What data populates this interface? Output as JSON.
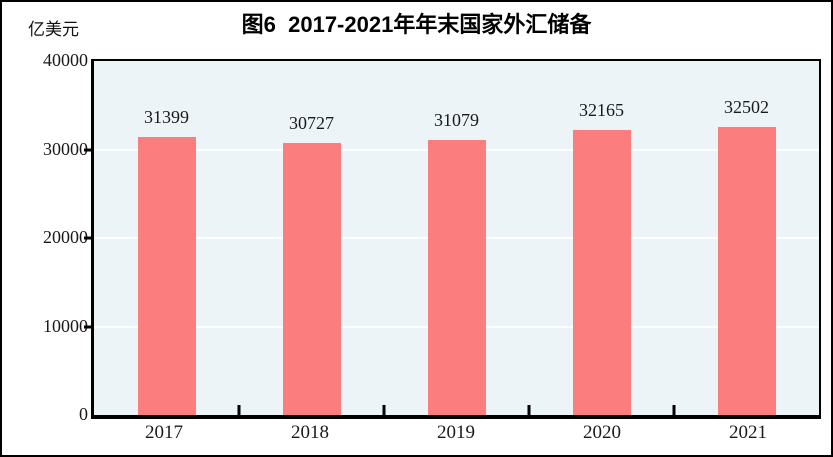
{
  "chart_data": {
    "type": "bar",
    "title": "图6  2017-2021年年末国家外汇储备",
    "unit_label": "亿美元",
    "categories": [
      "2017",
      "2018",
      "2019",
      "2020",
      "2021"
    ],
    "values": [
      31399,
      30727,
      31079,
      32165,
      32502
    ],
    "data_labels": [
      "31399",
      "30727",
      "31079",
      "32165",
      "32502"
    ],
    "ylim": [
      0,
      40000
    ],
    "yticks": [
      0,
      10000,
      20000,
      30000,
      40000
    ],
    "ytick_labels": [
      "0",
      "10000",
      "20000",
      "30000",
      "40000"
    ],
    "gridline_values": [
      10000,
      20000,
      30000
    ],
    "grid": true,
    "legend_position": "none",
    "colors": {
      "bar": "#FC7D7D",
      "plot_bg": "#ECF4F8",
      "gridline": "#FFFFFF",
      "axis": "#000000",
      "text": "#1A1A1A"
    }
  }
}
